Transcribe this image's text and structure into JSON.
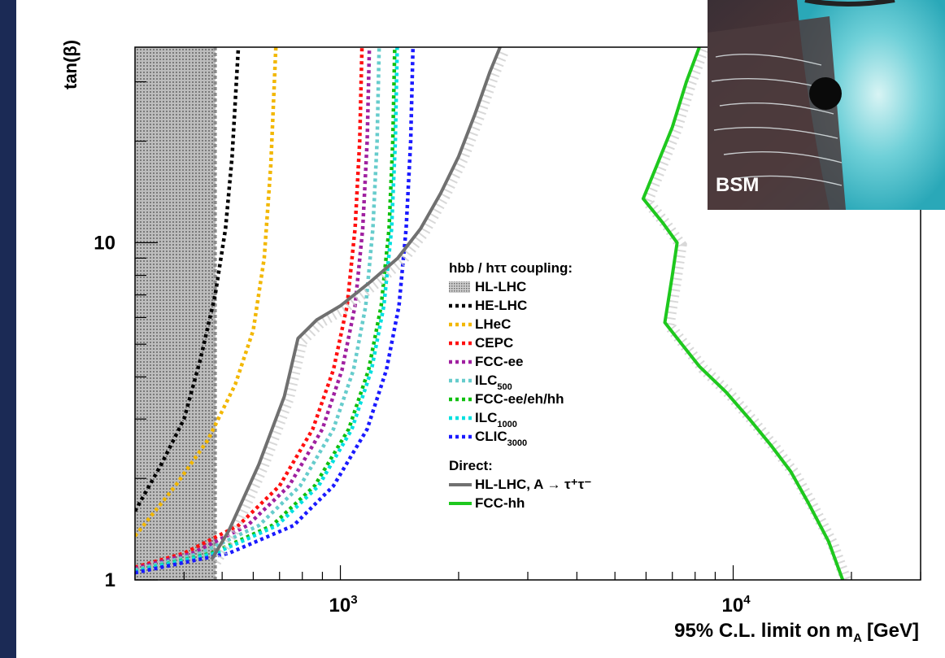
{
  "chart_data": {
    "type": "line",
    "xlabel": "95% C.L. limit on m",
    "xlabel_sub": "A",
    "xlabel_unit": "[GeV]",
    "ylabel": "tan(β)",
    "xscale": "log",
    "yscale": "log",
    "xlim": [
      300,
      30000
    ],
    "ylim": [
      1,
      38
    ],
    "x_ticks": [
      {
        "value": 1000,
        "base": "10",
        "exp": "3"
      },
      {
        "value": 10000,
        "base": "10",
        "exp": "4"
      }
    ],
    "y_ticks": [
      {
        "value": 1,
        "label": "1"
      },
      {
        "value": 10,
        "label": "10"
      }
    ],
    "legend_position": "center-right",
    "legend": {
      "coupling_header": "hbb / hττ coupling:",
      "direct_header": "Direct:"
    },
    "hllhc_band": {
      "name": "HL-LHC",
      "x_edge": 480,
      "color": "#8a8a8a"
    },
    "series": [
      {
        "name": "HE-LHC",
        "sub": "",
        "style": "dotted",
        "color": "#000000",
        "x": [
          300,
          350,
          400,
          440,
          480,
          510,
          530,
          550
        ],
        "y": [
          1.6,
          2.2,
          3.0,
          4.5,
          7,
          11,
          18,
          38
        ]
      },
      {
        "name": "LHeC",
        "sub": "",
        "style": "dotted",
        "color": "#f2b700",
        "x": [
          300,
          380,
          460,
          540,
          600,
          640,
          665,
          685
        ],
        "y": [
          1.35,
          1.9,
          2.6,
          3.8,
          5.5,
          9,
          17,
          38
        ]
      },
      {
        "name": "CEPC",
        "sub": "",
        "style": "dotted",
        "color": "#ff1010",
        "x": [
          300,
          400,
          550,
          700,
          850,
          960,
          1040,
          1090,
          1120,
          1135
        ],
        "y": [
          1.09,
          1.2,
          1.45,
          1.9,
          2.8,
          4.2,
          6.5,
          11,
          20,
          38
        ]
      },
      {
        "name": "FCC-ee",
        "sub": "",
        "style": "dotted",
        "color": "#a020a0",
        "x": [
          300,
          420,
          580,
          740,
          900,
          1010,
          1090,
          1140,
          1170,
          1185
        ],
        "y": [
          1.08,
          1.2,
          1.45,
          1.9,
          2.8,
          4.2,
          6.5,
          11,
          20,
          38
        ]
      },
      {
        "name": "ILC",
        "sub": "500",
        "style": "dotted",
        "color": "#66cccc",
        "x": [
          300,
          440,
          620,
          790,
          960,
          1080,
          1160,
          1210,
          1240,
          1255
        ],
        "y": [
          1.07,
          1.2,
          1.45,
          1.9,
          2.8,
          4.2,
          6.5,
          11,
          20,
          38
        ]
      },
      {
        "name": "FCC-ee/eh/hh",
        "sub": "",
        "style": "dotted",
        "color": "#10c010",
        "x": [
          300,
          470,
          670,
          860,
          1050,
          1180,
          1270,
          1330,
          1360,
          1375
        ],
        "y": [
          1.06,
          1.2,
          1.45,
          1.9,
          2.8,
          4.2,
          6.5,
          11,
          20,
          38
        ]
      },
      {
        "name": "ILC",
        "sub": "1000",
        "style": "dotted",
        "color": "#00e0e0",
        "x": [
          300,
          480,
          690,
          880,
          1070,
          1200,
          1290,
          1350,
          1380,
          1395
        ],
        "y": [
          1.06,
          1.2,
          1.45,
          1.9,
          2.8,
          4.2,
          6.5,
          11,
          20,
          38
        ]
      },
      {
        "name": "CLIC",
        "sub": "3000",
        "style": "dotted",
        "color": "#1a1aff",
        "x": [
          300,
          520,
          760,
          960,
          1170,
          1310,
          1410,
          1470,
          1510,
          1530
        ],
        "y": [
          1.05,
          1.2,
          1.45,
          1.9,
          2.8,
          4.2,
          6.5,
          11,
          20,
          38
        ]
      },
      {
        "name": "HL-LHC, A → τ⁺τ⁻",
        "sub": "",
        "style": "solid",
        "color": "#707070",
        "x": [
          470,
          520,
          620,
          720,
          780,
          870,
          1000,
          1200,
          1400,
          1600,
          1800,
          2000,
          2200,
          2400,
          2550
        ],
        "y": [
          1.15,
          1.4,
          2.2,
          3.5,
          5.2,
          5.9,
          6.5,
          7.7,
          9,
          11,
          14,
          18,
          24,
          32,
          38
        ]
      },
      {
        "name": "FCC-hh",
        "sub": "",
        "style": "solid",
        "color": "#1ec81e",
        "x": [
          8200,
          7600,
          7000,
          6400,
          5900,
          6600,
          7200,
          7000,
          6700,
          7400,
          8200,
          9600,
          11000,
          12500,
          14000,
          15500,
          17500,
          19000
        ],
        "y": [
          38,
          30,
          22,
          17,
          13.5,
          11.5,
          10,
          8,
          5.8,
          5,
          4.3,
          3.6,
          3.0,
          2.5,
          2.1,
          1.7,
          1.3,
          1.0
        ]
      }
    ]
  },
  "inset": {
    "label": "BSM"
  }
}
